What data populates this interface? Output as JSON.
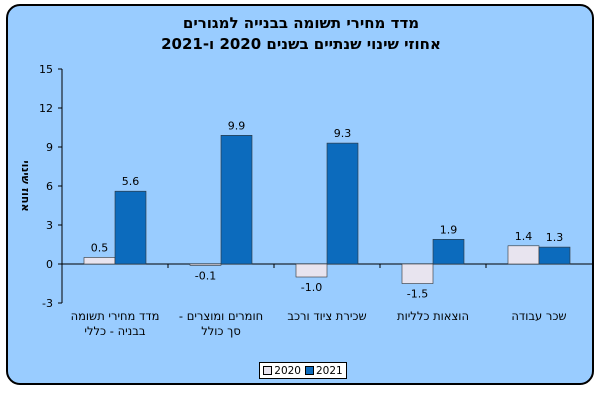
{
  "chart_data": {
    "type": "bar",
    "title": "מדד מחירי תשומה בבנייה למגורים",
    "subtitle": "אחוזי שינוי שנתיים בשנים 2020 ו-2021",
    "ylabel": "אחוז שינוי",
    "xlabel": "",
    "ylim": [
      -3,
      15
    ],
    "yticks": [
      -3,
      0,
      3,
      6,
      9,
      12,
      15
    ],
    "grid": false,
    "legend_position": "bottom",
    "categories": [
      [
        "מדד מחירי תשומה",
        "בבניה - כללי"
      ],
      [
        "חומרים ומוצרים -",
        "סך כולל"
      ],
      [
        "שכירת ציוד ורכב"
      ],
      [
        "הוצאות כלליות"
      ],
      [
        "שכר עבודה"
      ]
    ],
    "series": [
      {
        "name": "2020",
        "values": [
          0.5,
          -0.1,
          -1.0,
          -1.5,
          1.4
        ],
        "labels": [
          "0.5",
          "-0.1",
          "-1.0",
          "-1.5",
          "1.4"
        ],
        "color": "#e8e4ef"
      },
      {
        "name": "2021",
        "values": [
          5.6,
          9.9,
          9.3,
          1.9,
          1.3
        ],
        "labels": [
          "5.6",
          "9.9",
          "9.3",
          "1.9",
          "1.3"
        ],
        "color": "#0c6bbd"
      }
    ]
  },
  "colors": {
    "frame_background": "#99ccff",
    "bar_outline": "#333333"
  }
}
